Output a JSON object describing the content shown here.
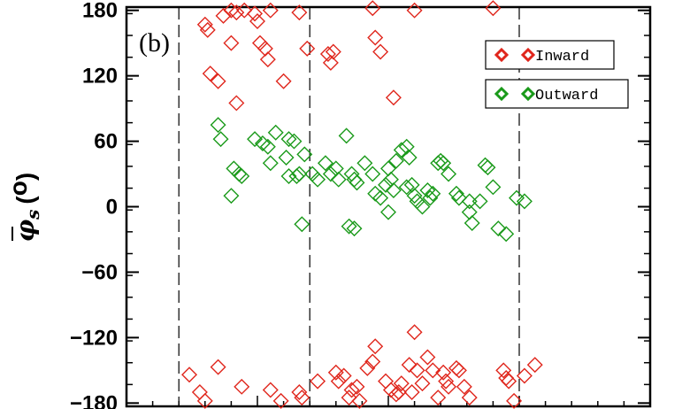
{
  "chart_data": {
    "type": "scatter",
    "panel_label": "(b)",
    "ylabel": {
      "symbol": "φ",
      "subscript": "s",
      "paren_open": "(",
      "degree": "o",
      "paren_close": ")"
    },
    "ylim": [
      -183,
      183
    ],
    "xlim": [
      0,
      10
    ],
    "yticks": [
      180,
      120,
      60,
      0,
      -60,
      -120,
      -180
    ],
    "ytick_labels": [
      "180",
      "120",
      "60",
      "0",
      "−60",
      "−120",
      "−180"
    ],
    "vlines": [
      {
        "x": 1.0,
        "style": "dashed"
      },
      {
        "x": 3.5,
        "style": "dashed"
      },
      {
        "x": 7.5,
        "style": "dashed"
      }
    ],
    "legend_placement": "top-right",
    "series": [
      {
        "name": "Inward",
        "color": "#e0261c",
        "marker": "diamond",
        "points": [
          [
            1.5,
            167
          ],
          [
            1.55,
            162
          ],
          [
            1.6,
            122
          ],
          [
            1.75,
            115
          ],
          [
            2.0,
            180
          ],
          [
            1.85,
            175
          ],
          [
            2.0,
            150
          ],
          [
            2.1,
            178
          ],
          [
            2.1,
            95
          ],
          [
            2.25,
            180
          ],
          [
            2.45,
            177
          ],
          [
            2.5,
            170
          ],
          [
            2.55,
            150
          ],
          [
            2.65,
            145
          ],
          [
            2.7,
            135
          ],
          [
            2.75,
            180
          ],
          [
            3.0,
            115
          ],
          [
            3.3,
            178
          ],
          [
            3.45,
            145
          ],
          [
            3.85,
            140
          ],
          [
            3.9,
            132
          ],
          [
            3.95,
            142
          ],
          [
            4.7,
            182
          ],
          [
            4.75,
            155
          ],
          [
            4.85,
            142
          ],
          [
            5.1,
            100
          ],
          [
            5.5,
            180
          ],
          [
            7.0,
            182
          ],
          [
            1.2,
            -154
          ],
          [
            1.4,
            -170
          ],
          [
            1.5,
            -178
          ],
          [
            1.75,
            -147
          ],
          [
            2.2,
            -165
          ],
          [
            2.75,
            -168
          ],
          [
            2.95,
            -178
          ],
          [
            3.3,
            -170
          ],
          [
            3.35,
            -175
          ],
          [
            3.65,
            -160
          ],
          [
            4.0,
            -152
          ],
          [
            4.05,
            -160
          ],
          [
            4.15,
            -155
          ],
          [
            4.25,
            -175
          ],
          [
            4.3,
            -168
          ],
          [
            4.4,
            -165
          ],
          [
            4.45,
            -178
          ],
          [
            4.6,
            -148
          ],
          [
            4.7,
            -142
          ],
          [
            4.75,
            -128
          ],
          [
            4.95,
            -160
          ],
          [
            5.05,
            -168
          ],
          [
            5.15,
            -172
          ],
          [
            5.2,
            -170
          ],
          [
            5.25,
            -162
          ],
          [
            5.4,
            -145
          ],
          [
            5.45,
            -170
          ],
          [
            5.5,
            -115
          ],
          [
            5.55,
            -150
          ],
          [
            5.65,
            -162
          ],
          [
            5.75,
            -138
          ],
          [
            5.85,
            -150
          ],
          [
            5.95,
            -175
          ],
          [
            6.05,
            -152
          ],
          [
            6.1,
            -160
          ],
          [
            6.15,
            -165
          ],
          [
            6.3,
            -148
          ],
          [
            6.35,
            -150
          ],
          [
            6.45,
            -165
          ],
          [
            6.55,
            -175
          ],
          [
            7.2,
            -150
          ],
          [
            7.25,
            -157
          ],
          [
            7.3,
            -160
          ],
          [
            7.4,
            -178
          ],
          [
            7.6,
            -155
          ],
          [
            7.8,
            -145
          ]
        ]
      },
      {
        "name": "Outward",
        "color": "#1a9a1a",
        "marker": "diamond",
        "points": [
          [
            1.75,
            75
          ],
          [
            1.8,
            62
          ],
          [
            2.05,
            35
          ],
          [
            2.15,
            30
          ],
          [
            2.2,
            28
          ],
          [
            2.45,
            62
          ],
          [
            2.6,
            58
          ],
          [
            2.7,
            55
          ],
          [
            2.75,
            40
          ],
          [
            2.85,
            68
          ],
          [
            3.05,
            45
          ],
          [
            3.1,
            62
          ],
          [
            3.2,
            60
          ],
          [
            3.25,
            28
          ],
          [
            3.3,
            30
          ],
          [
            3.4,
            48
          ],
          [
            3.55,
            30
          ],
          [
            3.65,
            25
          ],
          [
            3.8,
            40
          ],
          [
            3.9,
            30
          ],
          [
            4.0,
            35
          ],
          [
            4.05,
            25
          ],
          [
            4.2,
            65
          ],
          [
            4.3,
            30
          ],
          [
            4.35,
            25
          ],
          [
            4.4,
            22
          ],
          [
            4.55,
            40
          ],
          [
            4.7,
            30
          ],
          [
            4.75,
            12
          ],
          [
            4.85,
            8
          ],
          [
            4.95,
            20
          ],
          [
            5.0,
            35
          ],
          [
            5.05,
            25
          ],
          [
            5.1,
            15
          ],
          [
            5.15,
            42
          ],
          [
            5.25,
            52
          ],
          [
            5.35,
            55
          ],
          [
            5.4,
            45
          ],
          [
            5.45,
            20
          ],
          [
            5.5,
            10
          ],
          [
            5.55,
            5
          ],
          [
            5.65,
            0
          ],
          [
            5.75,
            15
          ],
          [
            5.8,
            8
          ],
          [
            5.85,
            12
          ],
          [
            5.95,
            40
          ],
          [
            6.0,
            42
          ],
          [
            6.05,
            40
          ],
          [
            6.15,
            30
          ],
          [
            6.3,
            12
          ],
          [
            6.35,
            8
          ],
          [
            6.55,
            -5
          ],
          [
            6.6,
            -15
          ],
          [
            6.75,
            5
          ],
          [
            6.85,
            38
          ],
          [
            6.9,
            36
          ],
          [
            7.0,
            18
          ],
          [
            7.1,
            -20
          ],
          [
            7.25,
            -25
          ],
          [
            7.45,
            8
          ],
          [
            3.35,
            -16
          ],
          [
            4.25,
            -18
          ],
          [
            4.35,
            -20
          ],
          [
            5.0,
            -5
          ],
          [
            5.35,
            18
          ],
          [
            6.55,
            5
          ],
          [
            7.6,
            5
          ],
          [
            3.1,
            28
          ],
          [
            2.0,
            10
          ]
        ]
      }
    ]
  }
}
